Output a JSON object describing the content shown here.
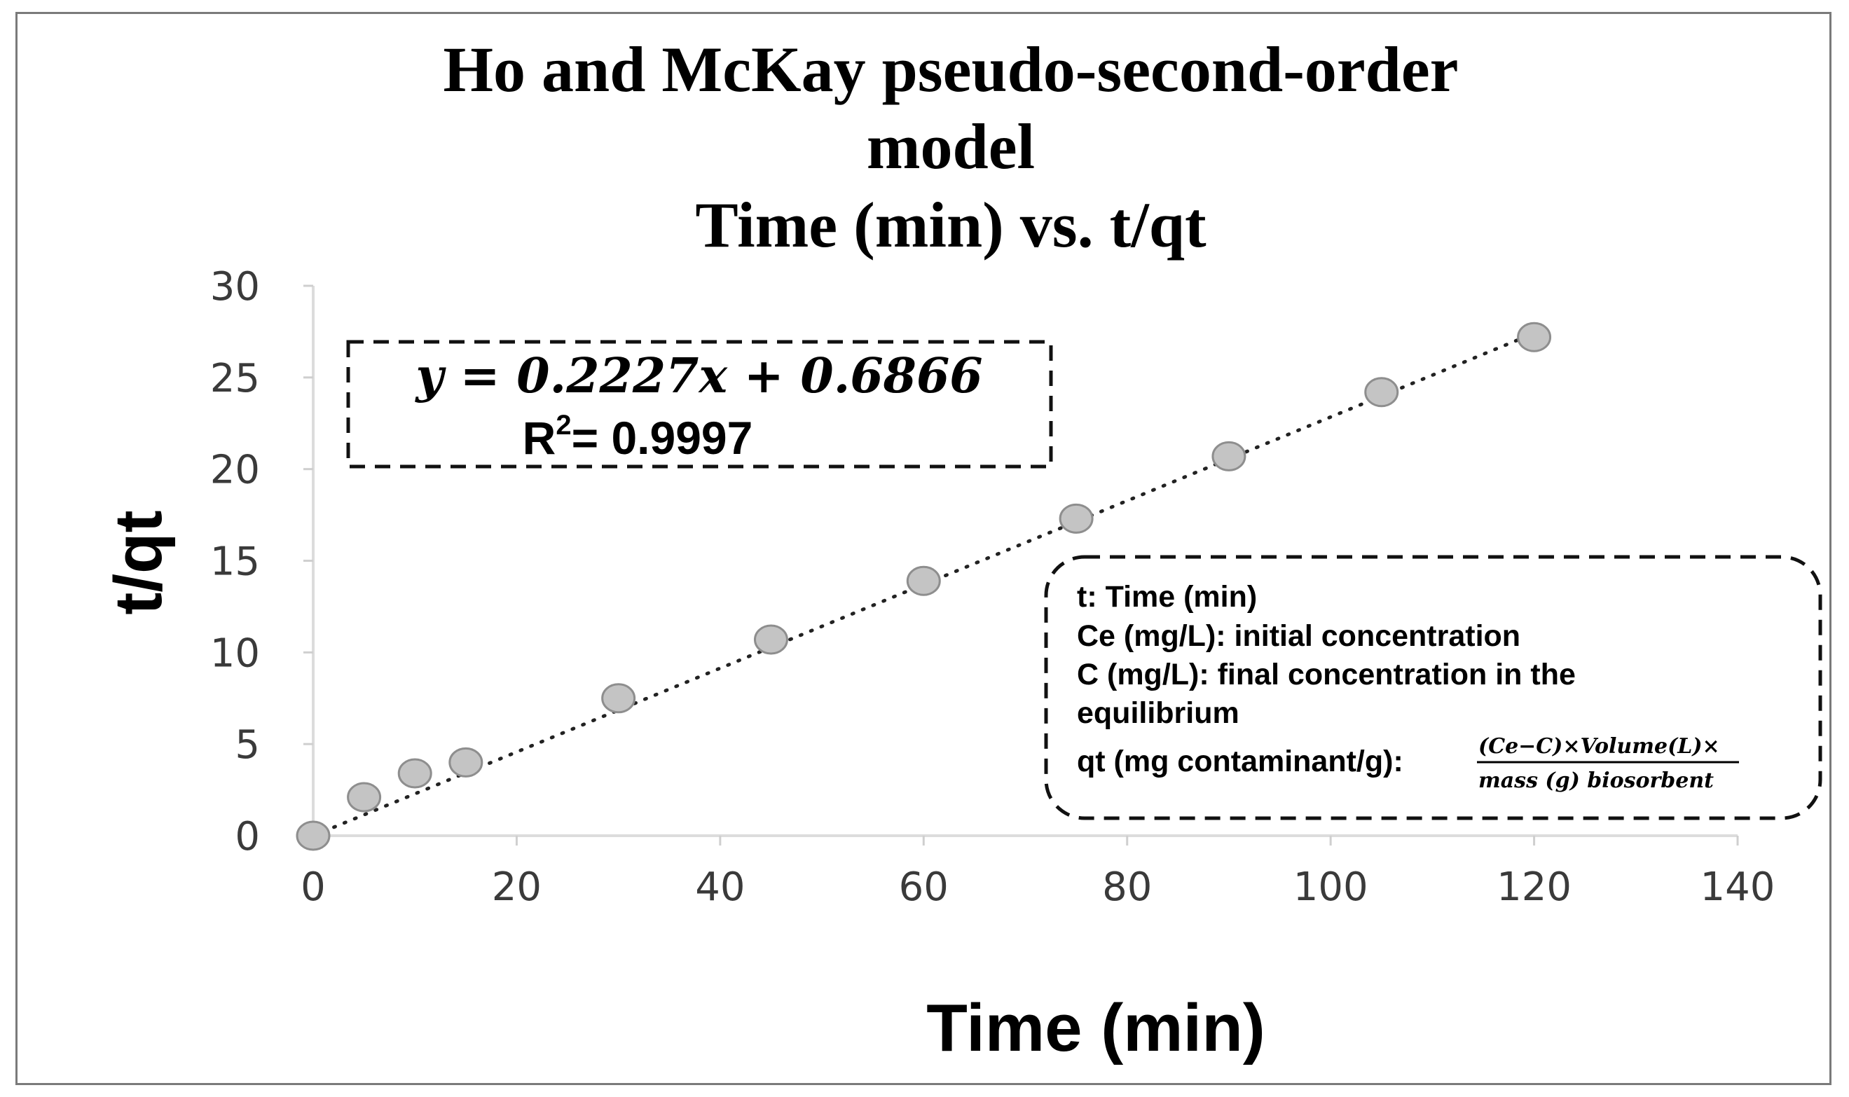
{
  "chart_data": {
    "type": "scatter",
    "title_lines": [
      "Ho and McKay pseudo-second-order",
      "model",
      "Time (min) vs. t/qt"
    ],
    "xlabel": "Time (min)",
    "ylabel": "t/qt",
    "xlim": [
      0,
      140
    ],
    "ylim": [
      0,
      30
    ],
    "x_ticks": [
      "0",
      "20",
      "40",
      "60",
      "80",
      "100",
      "120",
      "140"
    ],
    "y_ticks": [
      "0",
      "5",
      "10",
      "15",
      "20",
      "25",
      "30"
    ],
    "grid": false,
    "marker_color": "#c4c4c4",
    "trendline": {
      "style": "dotted",
      "slope": 0.2227,
      "intercept": 0.6866
    },
    "series": [
      {
        "x": [
          0,
          5,
          10,
          15,
          30,
          45,
          60,
          75,
          90,
          105,
          120
        ],
        "y": [
          0,
          2.1,
          3.4,
          4.0,
          7.5,
          10.7,
          13.9,
          17.3,
          20.7,
          24.2,
          27.2
        ]
      }
    ],
    "annotations": {
      "equation": "y = 0.2227x + 0.6866",
      "r2_label": "R",
      "r2_sup": "2",
      "r2_value": "= 0.9997",
      "legend": {
        "line1": "t: Time (min)",
        "line2": "Ce (mg/L): initial concentration",
        "line3": "C (mg/L): final concentration in the",
        "line4": "equilibrium",
        "line5": "qt (mg contaminant/g):",
        "numerator": "(Ce−C)×Volume(L)×",
        "denominator": "mass (g) biosorbent"
      }
    }
  }
}
